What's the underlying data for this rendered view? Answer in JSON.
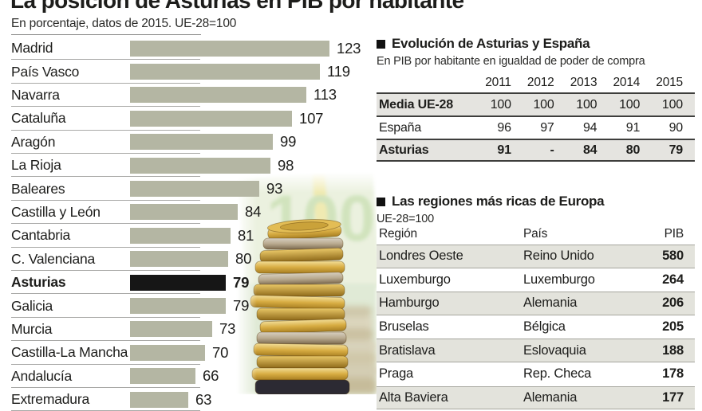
{
  "title": "La posición de Asturias en PIB por habitante",
  "subtitle": "En porcentaje, datos de 2015. UE-28=100",
  "colors": {
    "bar_fill": "#b4b6a3",
    "highlight_bar": "#161616",
    "row_shade": "#e5e4e0",
    "text": "#1d1d1b"
  },
  "chart_data": {
    "type": "bar",
    "title": "La posición de Asturias en PIB por habitante",
    "subtitle": "En porcentaje, datos de 2015. UE-28=100",
    "orientation": "horizontal",
    "categories": [
      "Madrid",
      "País Vasco",
      "Navarra",
      "Cataluña",
      "Aragón",
      "La Rioja",
      "Baleares",
      "Castilla y León",
      "Cantabria",
      "C. Valenciana",
      "Asturias",
      "Galicia",
      "Murcia",
      "Castilla-La Mancha",
      "Andalucía",
      "Extremadura"
    ],
    "values": [
      123,
      119,
      113,
      107,
      99,
      98,
      93,
      84,
      81,
      80,
      79,
      79,
      73,
      70,
      66,
      63
    ],
    "highlight": "Asturias",
    "xlim": [
      38,
      130
    ],
    "grid": false,
    "legend": "none"
  },
  "evolution_table": {
    "header": "Evolución de Asturias y España",
    "subtitle": "En PIB por habitante en igualdad de poder de compra",
    "years": [
      "2011",
      "2012",
      "2013",
      "2014",
      "2015"
    ],
    "rows": [
      {
        "label": "Media UE-28",
        "values": [
          "100",
          "100",
          "100",
          "100",
          "100"
        ],
        "shaded": true,
        "label_bold": true,
        "values_bold": false
      },
      {
        "label": "España",
        "values": [
          "96",
          "97",
          "94",
          "91",
          "90"
        ],
        "shaded": false,
        "label_bold": false,
        "values_bold": false
      },
      {
        "label": "Asturias",
        "values": [
          "91",
          "-",
          "84",
          "80",
          "79"
        ],
        "shaded": true,
        "label_bold": true,
        "values_bold": true
      }
    ]
  },
  "regions_table": {
    "header": "Las regiones más ricas de Europa",
    "subtitle": "UE-28=100",
    "columns": [
      "Región",
      "País",
      "PIB"
    ],
    "rows": [
      {
        "region": "Londres Oeste",
        "country": "Reino Unido",
        "pib": "580"
      },
      {
        "region": "Luxemburgo",
        "country": "Luxemburgo",
        "pib": "264"
      },
      {
        "region": "Hamburgo",
        "country": "Alemania",
        "pib": "206"
      },
      {
        "region": "Bruselas",
        "country": "Bélgica",
        "pib": "205"
      },
      {
        "region": "Bratislava",
        "country": "Eslovaquia",
        "pib": "188"
      },
      {
        "region": "Praga",
        "country": "Rep. Checa",
        "pib": "178"
      },
      {
        "region": "Alta Baviera",
        "country": "Alemania",
        "pib": "177"
      }
    ]
  },
  "decor": {
    "banknote_text": "100"
  }
}
